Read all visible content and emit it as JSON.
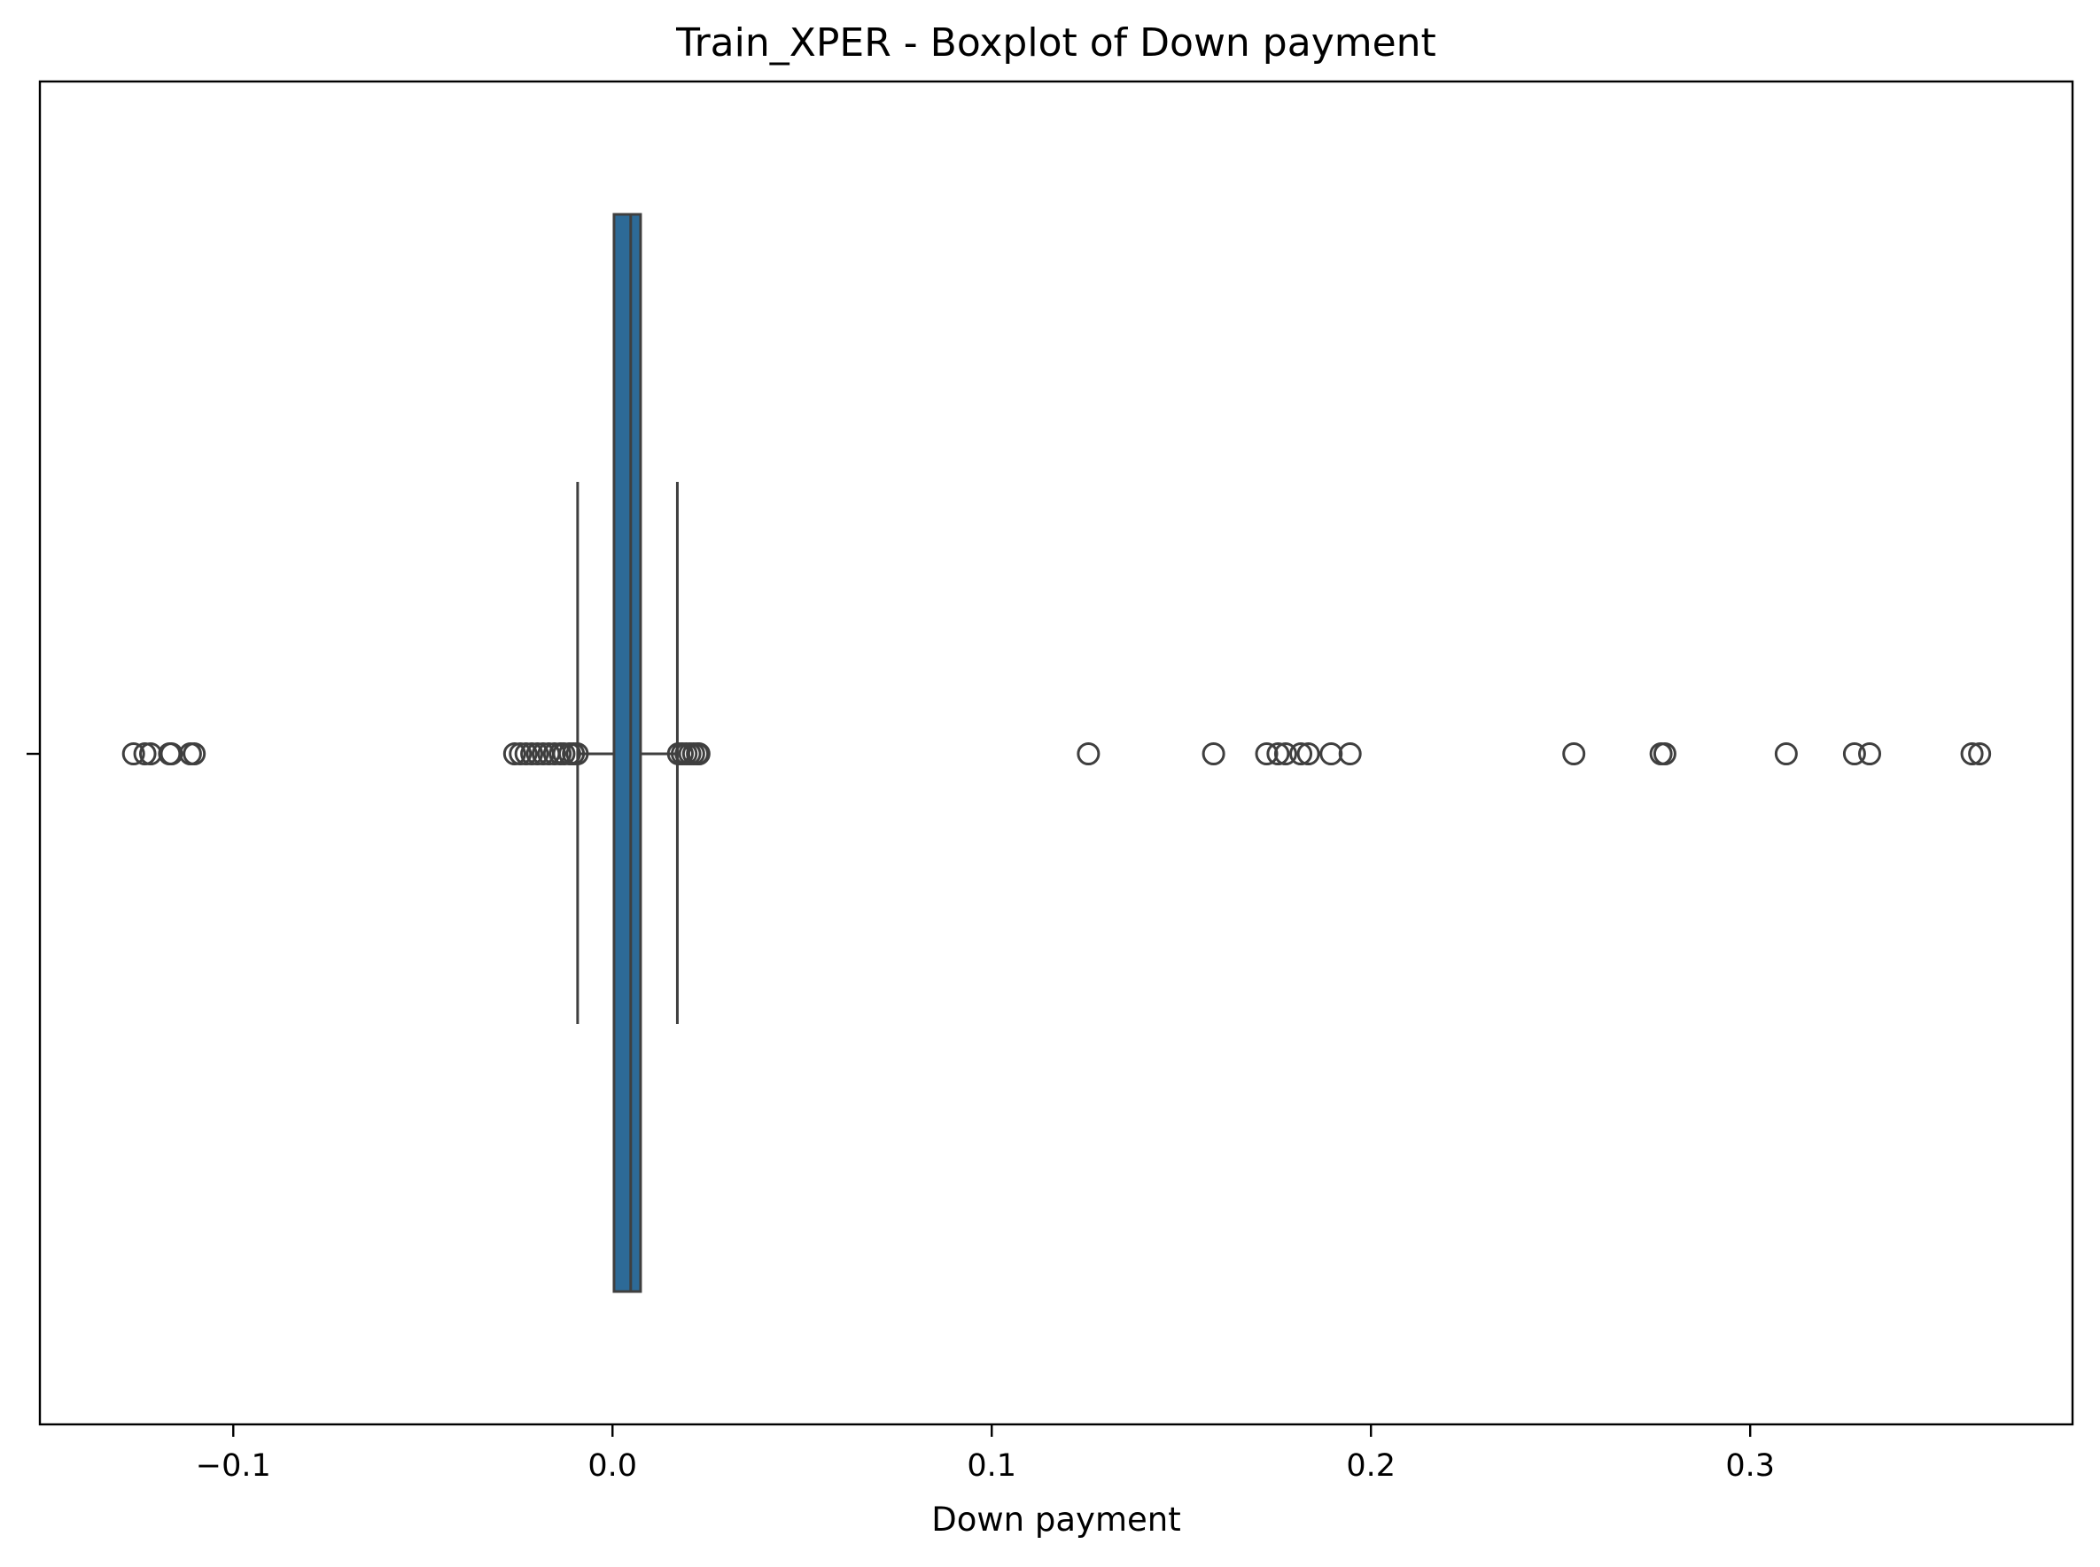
{
  "chart_data": {
    "type": "boxplot",
    "orientation": "horizontal",
    "title": "Train_XPER - Boxplot of Down payment",
    "xlabel": "Down payment",
    "ylabel": "",
    "xlim": [
      -0.151,
      0.385
    ],
    "xticks": [
      -0.1,
      0.0,
      0.1,
      0.2,
      0.3
    ],
    "xtick_labels": [
      "−0.1",
      "0.0",
      "0.1",
      "0.2",
      "0.3"
    ],
    "grid": false,
    "box_color": "#2d6a97",
    "edge_color": "#3f3f3f",
    "box": {
      "q1": 0.0004,
      "median": 0.0048,
      "q3": 0.0074,
      "whisker_low": -0.0092,
      "whisker_high": 0.0171
    },
    "outliers": [
      -0.1263,
      -0.1233,
      -0.1218,
      -0.1168,
      -0.1163,
      -0.1113,
      -0.1103,
      -0.0258,
      -0.0243,
      -0.0228,
      -0.0213,
      -0.0198,
      -0.0183,
      -0.0168,
      -0.0153,
      -0.0138,
      -0.0128,
      -0.0113,
      -0.0103,
      -0.0093,
      0.0174,
      0.0184,
      0.0194,
      0.0204,
      0.0214,
      0.0224,
      0.0228,
      0.1255,
      0.1585,
      0.1725,
      0.1755,
      0.1775,
      0.1815,
      0.1835,
      0.1895,
      0.1945,
      0.2535,
      0.2765,
      0.2775,
      0.3095,
      0.3275,
      0.3315,
      0.3585,
      0.3605
    ]
  }
}
